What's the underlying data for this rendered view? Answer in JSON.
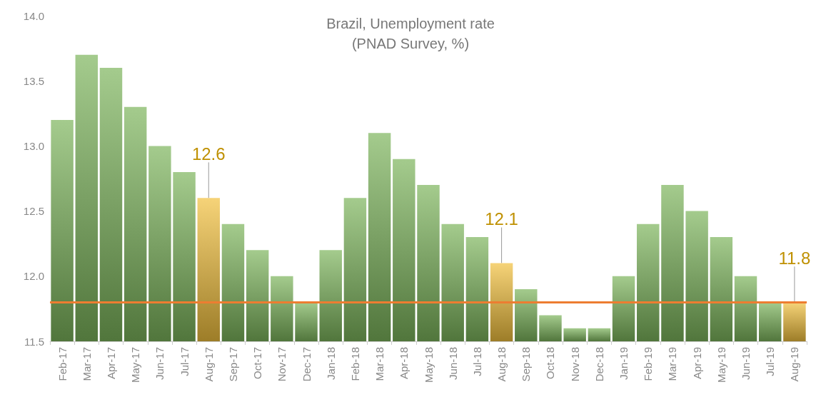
{
  "chart_data": {
    "type": "bar",
    "title": "Brazil, Unemployment rate",
    "subtitle": "(PNAD Survey, %)",
    "categories": [
      "Feb-17",
      "Mar-17",
      "Apr-17",
      "May-17",
      "Jun-17",
      "Jul-17",
      "Aug-17",
      "Sep-17",
      "Oct-17",
      "Nov-17",
      "Dec-17",
      "Jan-18",
      "Feb-18",
      "Mar-18",
      "Apr-18",
      "May-18",
      "Jun-18",
      "Jul-18",
      "Aug-18",
      "Sep-18",
      "Oct-18",
      "Nov-18",
      "Dec-18",
      "Jan-19",
      "Feb-19",
      "Mar-19",
      "Apr-19",
      "May-19",
      "Jun-19",
      "Jul-19",
      "Aug-19"
    ],
    "values": [
      13.2,
      13.7,
      13.6,
      13.3,
      13.0,
      12.8,
      12.6,
      12.4,
      12.2,
      12.0,
      11.8,
      12.2,
      12.6,
      13.1,
      12.9,
      12.7,
      12.4,
      12.3,
      12.1,
      11.9,
      11.7,
      11.6,
      11.6,
      12.0,
      12.4,
      12.7,
      12.5,
      12.3,
      12.0,
      11.8,
      11.8
    ],
    "colors": [
      "#7db55c",
      "#7db55c",
      "#7db55c",
      "#7db55c",
      "#7db55c",
      "#7db55c",
      "#f2c03e",
      "#7db55c",
      "#7db55c",
      "#7db55c",
      "#7db55c",
      "#7db55c",
      "#7db55c",
      "#7db55c",
      "#7db55c",
      "#7db55c",
      "#7db55c",
      "#7db55c",
      "#f2c03e",
      "#7db55c",
      "#7db55c",
      "#7db55c",
      "#7db55c",
      "#7db55c",
      "#7db55c",
      "#7db55c",
      "#7db55c",
      "#7db55c",
      "#7db55c",
      "#7db55c",
      "#f2c03e"
    ],
    "value_labels": [
      null,
      null,
      null,
      null,
      null,
      null,
      "12.6",
      null,
      null,
      null,
      null,
      null,
      null,
      null,
      null,
      null,
      null,
      null,
      "12.1",
      null,
      null,
      null,
      null,
      null,
      null,
      null,
      null,
      null,
      null,
      null,
      "11.8"
    ],
    "ylim": [
      11.5,
      14.0
    ],
    "yticks": [
      11.5,
      {
        "value": 12,
        "label": "12.0"
      },
      12.5,
      {
        "value": 13,
        "label": "13.0"
      },
      13.5,
      {
        "value": 14,
        "label": "14.0"
      }
    ],
    "ref_lines": [
      {
        "axis": "y",
        "value": 11.8,
        "color": "#ed7d31"
      }
    ],
    "grid": false
  }
}
